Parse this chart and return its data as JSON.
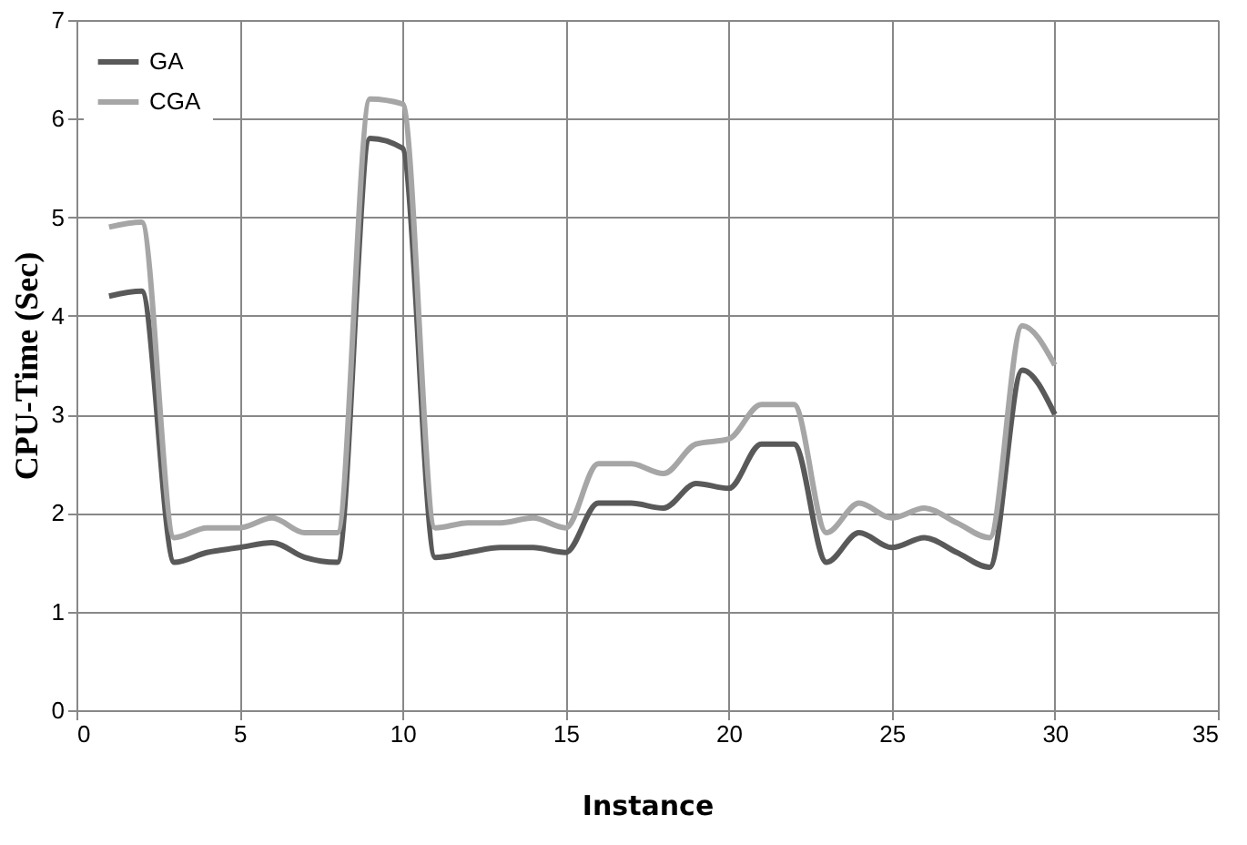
{
  "chart_data": {
    "type": "line",
    "xlabel": "Instance",
    "ylabel": "CPU-Time (Sec)",
    "x": [
      1,
      2,
      3,
      4,
      5,
      6,
      7,
      8,
      9,
      10,
      11,
      12,
      13,
      14,
      15,
      16,
      17,
      18,
      19,
      20,
      21,
      22,
      23,
      24,
      25,
      26,
      27,
      28,
      29,
      30
    ],
    "series": [
      {
        "name": "GA",
        "color": "#595959",
        "values": [
          4.2,
          4.25,
          1.5,
          1.6,
          1.65,
          1.7,
          1.55,
          1.5,
          5.8,
          5.7,
          1.55,
          1.6,
          1.65,
          1.65,
          1.6,
          2.1,
          2.1,
          2.05,
          2.3,
          2.25,
          2.7,
          2.7,
          1.5,
          1.8,
          1.65,
          1.75,
          1.6,
          1.45,
          3.45,
          3.0
        ]
      },
      {
        "name": "CGA",
        "color": "#a6a6a6",
        "values": [
          4.9,
          4.95,
          1.75,
          1.85,
          1.85,
          1.95,
          1.8,
          1.8,
          6.2,
          6.15,
          1.85,
          1.9,
          1.9,
          1.95,
          1.85,
          2.5,
          2.5,
          2.4,
          2.7,
          2.75,
          3.1,
          3.1,
          1.8,
          2.1,
          1.95,
          2.05,
          1.9,
          1.75,
          3.9,
          3.5
        ]
      }
    ],
    "xlim": [
      0,
      35
    ],
    "xticks": [
      0,
      5,
      10,
      15,
      20,
      25,
      30,
      35
    ],
    "ylim": [
      0,
      7
    ],
    "yticks": [
      0,
      1,
      2,
      3,
      4,
      5,
      6,
      7
    ],
    "grid": true,
    "legend": "top left",
    "marker": "none",
    "line_style": "solid"
  }
}
